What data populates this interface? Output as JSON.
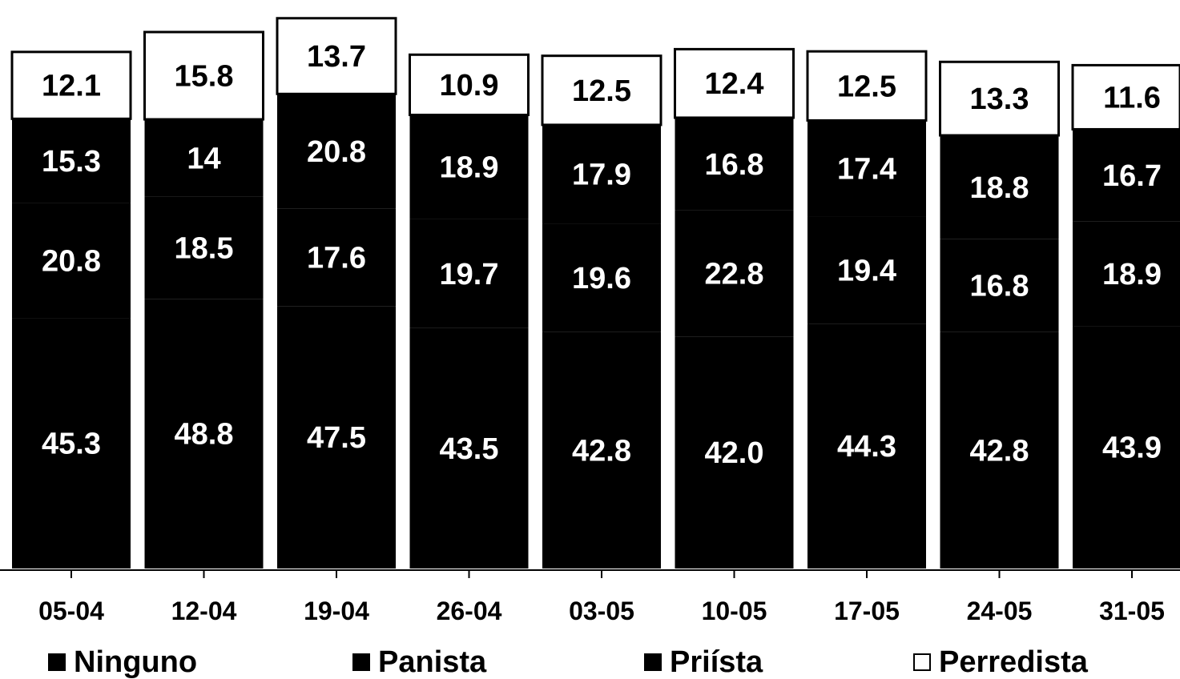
{
  "chart_data": {
    "type": "bar",
    "stacked": true,
    "categories": [
      "05-04",
      "12-04",
      "19-04",
      "26-04",
      "03-05",
      "10-05",
      "17-05",
      "24-05",
      "31-05"
    ],
    "series": [
      {
        "name": "Ninguno",
        "color": "#000000",
        "values": [
          45.3,
          48.8,
          47.5,
          43.5,
          42.8,
          42.0,
          44.3,
          42.8,
          43.9
        ]
      },
      {
        "name": "Panista",
        "color": "#000000",
        "values": [
          20.8,
          18.5,
          17.6,
          19.7,
          19.6,
          22.8,
          19.4,
          16.8,
          18.9
        ]
      },
      {
        "name": "Priísta",
        "color": "#000000",
        "values": [
          15.3,
          14,
          20.8,
          18.9,
          17.9,
          16.8,
          17.4,
          18.8,
          16.7
        ]
      },
      {
        "name": "Perredista",
        "color": "#ffffff",
        "values": [
          12.1,
          15.8,
          13.7,
          10.9,
          12.5,
          12.4,
          12.5,
          13.3,
          11.6
        ]
      }
    ],
    "labels": [
      [
        "45.3",
        "48.8",
        "47.5",
        "43.5",
        "42.8",
        "42.0",
        "44.3",
        "42.8",
        "43.9"
      ],
      [
        "20.8",
        "18.5",
        "17.6",
        "19.7",
        "19.6",
        "22.8",
        "19.4",
        "16.8",
        "18.9"
      ],
      [
        "15.3",
        "14",
        "20.8",
        "18.9",
        "17.9",
        "16.8",
        "17.4",
        "18.8",
        "16.7"
      ],
      [
        "12.1",
        "15.8",
        "13.7",
        "10.9",
        "12.5",
        "12.4",
        "12.5",
        "13.3",
        "11.6"
      ]
    ],
    "title": "",
    "xlabel": "",
    "ylabel": "",
    "ylim": [
      0,
      100
    ],
    "grid": false,
    "legend_position": "bottom"
  },
  "legend": [
    {
      "label": "Ninguno",
      "swatch": "#000000"
    },
    {
      "label": "Panista",
      "swatch": "#000000"
    },
    {
      "label": "Priísta",
      "swatch": "#000000"
    },
    {
      "label": "Perredista",
      "swatch": "#ffffff"
    }
  ]
}
